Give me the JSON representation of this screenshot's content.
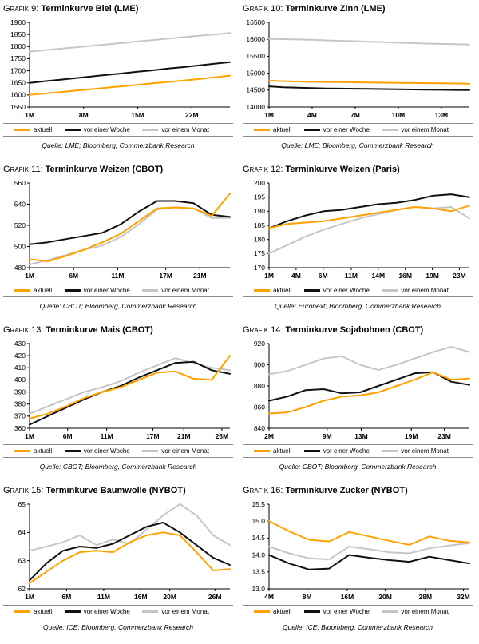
{
  "legend": {
    "items": [
      {
        "label": "aktuell",
        "color": "#FFA200"
      },
      {
        "label": "vor einer Woche",
        "color": "#111111"
      },
      {
        "label": "vor einem Monat",
        "color": "#C6C6C6"
      }
    ]
  },
  "chart_data": [
    {
      "type": "line",
      "title_prefix": "Grafik 9:",
      "title": "Terminkurve Blei (LME)",
      "source": "Quelle: LME; Bloomberg, Commerzbank Research",
      "ylim": [
        1550,
        1900
      ],
      "ytick": 50,
      "xticks": [
        {
          "label": "1M",
          "f": 0.0
        },
        {
          "label": "8M",
          "f": 0.27
        },
        {
          "label": "15M",
          "f": 0.54
        },
        {
          "label": "22M",
          "f": 0.81
        }
      ],
      "series": [
        {
          "name": "aktuell",
          "values": [
            1601,
            1606,
            1612,
            1618,
            1624,
            1630,
            1636,
            1642,
            1648,
            1654,
            1660,
            1666,
            1673,
            1680
          ]
        },
        {
          "name": "vor einer Woche",
          "values": [
            1650,
            1657,
            1663,
            1670,
            1676,
            1683,
            1689,
            1696,
            1702,
            1709,
            1715,
            1722,
            1729,
            1736
          ]
        },
        {
          "name": "vor einem Monat",
          "values": [
            1779,
            1785,
            1791,
            1797,
            1803,
            1809,
            1815,
            1821,
            1827,
            1833,
            1839,
            1845,
            1850,
            1856
          ]
        }
      ]
    },
    {
      "type": "line",
      "title_prefix": "Grafik 10:",
      "title": "Terminkurve Zinn (LME)",
      "source": "Quelle: LME; Bloomberg, Commerzbank Research",
      "ylim": [
        14000,
        16500
      ],
      "ytick": 500,
      "xticks": [
        {
          "label": "1M",
          "f": 0.0
        },
        {
          "label": "4M",
          "f": 0.215
        },
        {
          "label": "7M",
          "f": 0.43
        },
        {
          "label": "10M",
          "f": 0.645
        },
        {
          "label": "13M",
          "f": 0.86
        }
      ],
      "series": [
        {
          "name": "aktuell",
          "values": [
            14780,
            14765,
            14755,
            14745,
            14740,
            14735,
            14730,
            14725,
            14720,
            14715,
            14710,
            14705,
            14700,
            14695,
            14690
          ]
        },
        {
          "name": "vor einer Woche",
          "values": [
            14610,
            14585,
            14570,
            14560,
            14550,
            14545,
            14540,
            14535,
            14530,
            14525,
            14520,
            14515,
            14510,
            14505,
            14500
          ]
        },
        {
          "name": "vor einem Monat",
          "values": [
            16010,
            16005,
            15995,
            15985,
            15970,
            15955,
            15945,
            15930,
            15915,
            15900,
            15890,
            15875,
            15865,
            15855,
            15845
          ]
        }
      ]
    },
    {
      "type": "line",
      "title_prefix": "Grafik 11:",
      "title": "Terminkurve Weizen (CBOT)",
      "source": "Quelle: CBOT; Bloomberg, Commerzbank Research",
      "ylim": [
        480,
        560
      ],
      "ytick": 20,
      "xticks": [
        {
          "label": "1M",
          "f": 0.0
        },
        {
          "label": "6M",
          "f": 0.22
        },
        {
          "label": "11M",
          "f": 0.44
        },
        {
          "label": "17M",
          "f": 0.68
        },
        {
          "label": "21M",
          "f": 0.85
        }
      ],
      "series": [
        {
          "name": "aktuell",
          "values": [
            488,
            486,
            491,
            497,
            504,
            512,
            524,
            536,
            537,
            536,
            529,
            550
          ]
        },
        {
          "name": "vor einer Woche",
          "values": [
            502,
            504,
            507,
            510,
            513,
            521,
            533,
            543,
            543,
            541,
            530,
            528
          ]
        },
        {
          "name": "vor einem Monat",
          "values": [
            483,
            487,
            492,
            497,
            501,
            509,
            521,
            535,
            537,
            536,
            527,
            527
          ]
        }
      ]
    },
    {
      "type": "line",
      "title_prefix": "Grafik 12:",
      "title": "Terminkurve Weizen (Paris)",
      "source": "Quelle: Euronext; Bloomberg, Commerzbank Research",
      "ylim": [
        170,
        200
      ],
      "ytick": 5,
      "xticks": [
        {
          "label": "1M",
          "f": 0.0
        },
        {
          "label": "4M",
          "f": 0.135
        },
        {
          "label": "6M",
          "f": 0.27
        },
        {
          "label": "11M",
          "f": 0.41
        },
        {
          "label": "14M",
          "f": 0.545
        },
        {
          "label": "16M",
          "f": 0.68
        },
        {
          "label": "19M",
          "f": 0.815
        },
        {
          "label": "23M",
          "f": 0.95
        }
      ],
      "series": [
        {
          "name": "aktuell",
          "values": [
            184,
            185.5,
            186,
            186.5,
            187.5,
            188.5,
            189.5,
            190.5,
            191.5,
            191,
            190,
            192
          ]
        },
        {
          "name": "vor einer Woche",
          "values": [
            184,
            186.5,
            188.5,
            190,
            190.5,
            191.5,
            192.5,
            193,
            194,
            195.5,
            196,
            195
          ]
        },
        {
          "name": "vor einem Monat",
          "values": [
            175,
            178,
            181,
            183.5,
            185.5,
            187.5,
            189,
            190.5,
            191.5,
            191,
            191.5,
            187.5
          ]
        }
      ]
    },
    {
      "type": "line",
      "title_prefix": "Grafik 13:",
      "title": "Terminkurve Mais (CBOT)",
      "source": "Quelle: CBOT; Bloomberg, Commerzbank Research",
      "ylim": [
        360,
        430
      ],
      "ytick": 10,
      "xticks": [
        {
          "label": "1M",
          "f": 0.0
        },
        {
          "label": "6M",
          "f": 0.19
        },
        {
          "label": "11M",
          "f": 0.385
        },
        {
          "label": "17M",
          "f": 0.615
        },
        {
          "label": "21M",
          "f": 0.77
        },
        {
          "label": "26M",
          "f": 0.96
        }
      ],
      "series": [
        {
          "name": "aktuell",
          "values": [
            368,
            372,
            378,
            385,
            390,
            394,
            400,
            406,
            407,
            401,
            400,
            420
          ]
        },
        {
          "name": "vor einer Woche",
          "values": [
            363,
            370,
            377,
            384,
            390,
            395,
            402,
            408,
            414,
            415,
            408,
            405
          ]
        },
        {
          "name": "vor einem Monat",
          "values": [
            372,
            378,
            384,
            390,
            394,
            399,
            406,
            412,
            418,
            414,
            410,
            408
          ]
        }
      ]
    },
    {
      "type": "line",
      "title_prefix": "Grafik 14:",
      "title": "Terminkurve Sojabohnen (CBOT)",
      "source": "Quelle: CBOT; Bloomberg, Commerzbank Research",
      "ylim": [
        840,
        920
      ],
      "ytick": 20,
      "xticks": [
        {
          "label": "2M",
          "f": 0.0
        },
        {
          "label": "9M",
          "f": 0.29
        },
        {
          "label": "13M",
          "f": 0.46
        },
        {
          "label": "19M",
          "f": 0.71
        },
        {
          "label": "23M",
          "f": 0.875
        }
      ],
      "series": [
        {
          "name": "aktuell",
          "values": [
            854,
            855,
            860,
            866,
            870,
            871,
            874,
            880,
            886,
            893,
            886,
            887
          ]
        },
        {
          "name": "vor einer Woche",
          "values": [
            866,
            870,
            876,
            877,
            873,
            874,
            880,
            886,
            892,
            893,
            884,
            881
          ]
        },
        {
          "name": "vor einem Monat",
          "values": [
            891,
            894,
            900,
            906,
            908,
            900,
            895,
            900,
            906,
            912,
            917,
            912
          ]
        }
      ]
    },
    {
      "type": "line",
      "title_prefix": "Grafik 15:",
      "title": "Terminkurve Baumwolle (NYBOT)",
      "source": "Quelle: ICE; Bloomberg, Commerzbank Research",
      "ylim": [
        62,
        65
      ],
      "ytick": 1,
      "xticks": [
        {
          "label": "1M",
          "f": 0.0
        },
        {
          "label": "6M",
          "f": 0.185
        },
        {
          "label": "11M",
          "f": 0.37
        },
        {
          "label": "16M",
          "f": 0.555
        },
        {
          "label": "20M",
          "f": 0.7
        },
        {
          "label": "26M",
          "f": 0.925
        }
      ],
      "series": [
        {
          "name": "aktuell",
          "values": [
            62.2,
            62.6,
            63.0,
            63.3,
            63.35,
            63.3,
            63.65,
            63.9,
            64.0,
            63.9,
            63.3,
            62.65,
            62.7
          ]
        },
        {
          "name": "vor einer Woche",
          "values": [
            62.3,
            62.9,
            63.35,
            63.5,
            63.45,
            63.6,
            63.9,
            64.2,
            64.35,
            64.0,
            63.55,
            63.1,
            62.85
          ]
        },
        {
          "name": "vor einem Monat",
          "values": [
            63.35,
            63.5,
            63.65,
            63.9,
            63.55,
            63.75,
            63.6,
            64.1,
            64.6,
            65.0,
            64.6,
            63.9,
            63.55
          ]
        }
      ]
    },
    {
      "type": "line",
      "title_prefix": "Grafik 16:",
      "title": "Terminkurve Zucker (NYBOT)",
      "source": "Quelle: ICE; Bloomberg, Commerzbank Research",
      "ylim": [
        13.0,
        15.5
      ],
      "ytick": 0.5,
      "xticks": [
        {
          "label": "4M",
          "f": 0.0
        },
        {
          "label": "8M",
          "f": 0.19
        },
        {
          "label": "16M",
          "f": 0.39
        },
        {
          "label": "20M",
          "f": 0.58
        },
        {
          "label": "28M",
          "f": 0.78
        },
        {
          "label": "32M",
          "f": 0.97
        }
      ],
      "series": [
        {
          "name": "aktuell",
          "values": [
            15.0,
            14.7,
            14.45,
            14.4,
            14.68,
            14.55,
            14.42,
            14.3,
            14.55,
            14.42,
            14.37
          ]
        },
        {
          "name": "vor einer Woche",
          "values": [
            14.0,
            13.75,
            13.57,
            13.6,
            14.0,
            13.92,
            13.85,
            13.8,
            13.95,
            13.85,
            13.75
          ]
        },
        {
          "name": "vor einem Monat",
          "values": [
            14.25,
            14.05,
            13.9,
            13.87,
            14.25,
            14.17,
            14.08,
            14.05,
            14.2,
            14.28,
            14.35
          ]
        }
      ]
    }
  ]
}
